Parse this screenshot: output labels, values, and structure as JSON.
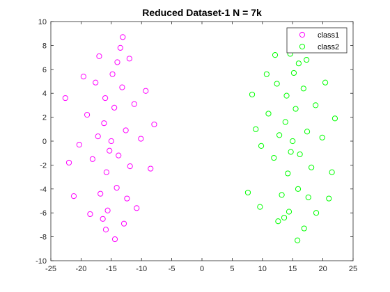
{
  "chart_data": {
    "type": "scatter",
    "title": "Reduced Dataset-1 N = 7k",
    "xlabel": "",
    "ylabel": "",
    "xlim": [
      -25,
      25
    ],
    "ylim": [
      -10,
      10
    ],
    "x_ticks": [
      "-25",
      "-20",
      "-15",
      "-10",
      "-5",
      "0",
      "5",
      "10",
      "15",
      "20",
      "25"
    ],
    "y_ticks": [
      "-10",
      "-8",
      "-6",
      "-4",
      "-2",
      "0",
      "2",
      "4",
      "6",
      "8",
      "10"
    ],
    "grid": false,
    "legend_position": "top-right",
    "marker": "open-circle",
    "series": [
      {
        "name": "class1",
        "color": "#ff00ff",
        "points": [
          [
            -15.0,
            0.0
          ],
          [
            -16.2,
            1.5
          ],
          [
            -13.8,
            -1.2
          ],
          [
            -14.5,
            2.8
          ],
          [
            -15.8,
            -2.6
          ],
          [
            -17.2,
            0.4
          ],
          [
            -12.6,
            0.9
          ],
          [
            -14.1,
            -3.9
          ],
          [
            -16.0,
            3.6
          ],
          [
            -15.3,
            -0.8
          ],
          [
            -18.1,
            -1.5
          ],
          [
            -11.9,
            -2.1
          ],
          [
            -13.2,
            4.5
          ],
          [
            -16.8,
            -4.4
          ],
          [
            -14.8,
            5.6
          ],
          [
            -15.6,
            -5.8
          ],
          [
            -19.0,
            2.2
          ],
          [
            -11.2,
            3.1
          ],
          [
            -17.6,
            4.9
          ],
          [
            -12.4,
            -4.8
          ],
          [
            -20.3,
            -0.3
          ],
          [
            -10.1,
            0.2
          ],
          [
            -14.0,
            6.6
          ],
          [
            -16.4,
            -6.5
          ],
          [
            -13.5,
            7.8
          ],
          [
            -13.1,
            8.7
          ],
          [
            -14.4,
            -8.2
          ],
          [
            -22.6,
            3.6
          ],
          [
            -22.0,
            -1.8
          ],
          [
            -7.9,
            1.4
          ],
          [
            -8.5,
            -2.3
          ],
          [
            -21.2,
            -4.6
          ],
          [
            -9.3,
            4.2
          ],
          [
            -19.6,
            5.4
          ],
          [
            -10.8,
            -5.6
          ],
          [
            -18.5,
            -6.1
          ],
          [
            -12.0,
            6.9
          ],
          [
            -17.0,
            7.1
          ],
          [
            -15.9,
            -7.4
          ],
          [
            -12.9,
            -6.9
          ]
        ]
      },
      {
        "name": "class2",
        "color": "#00ff00",
        "points": [
          [
            15.0,
            0.0
          ],
          [
            13.8,
            1.6
          ],
          [
            16.2,
            -1.1
          ],
          [
            15.5,
            2.7
          ],
          [
            14.2,
            -2.7
          ],
          [
            12.8,
            0.5
          ],
          [
            17.4,
            0.8
          ],
          [
            15.9,
            -4.0
          ],
          [
            14.0,
            3.8
          ],
          [
            14.7,
            -0.9
          ],
          [
            11.9,
            -1.4
          ],
          [
            18.1,
            -2.2
          ],
          [
            16.8,
            4.4
          ],
          [
            13.2,
            -4.5
          ],
          [
            15.2,
            5.7
          ],
          [
            14.4,
            -5.9
          ],
          [
            11.0,
            2.3
          ],
          [
            18.8,
            3.0
          ],
          [
            12.4,
            4.8
          ],
          [
            17.6,
            -4.7
          ],
          [
            9.8,
            -0.4
          ],
          [
            19.9,
            0.3
          ],
          [
            16.0,
            6.5
          ],
          [
            13.6,
            -6.4
          ],
          [
            14.6,
            7.3
          ],
          [
            12.1,
            7.2
          ],
          [
            15.8,
            -8.3
          ],
          [
            7.6,
            -4.3
          ],
          [
            8.3,
            3.9
          ],
          [
            22.0,
            1.9
          ],
          [
            21.5,
            -2.6
          ],
          [
            20.4,
            4.9
          ],
          [
            9.6,
            -5.5
          ],
          [
            18.9,
            -6.0
          ],
          [
            10.7,
            5.6
          ],
          [
            17.3,
            6.8
          ],
          [
            12.6,
            -6.7
          ],
          [
            16.9,
            -7.3
          ],
          [
            8.9,
            1.0
          ],
          [
            21.0,
            -4.8
          ]
        ]
      }
    ]
  }
}
